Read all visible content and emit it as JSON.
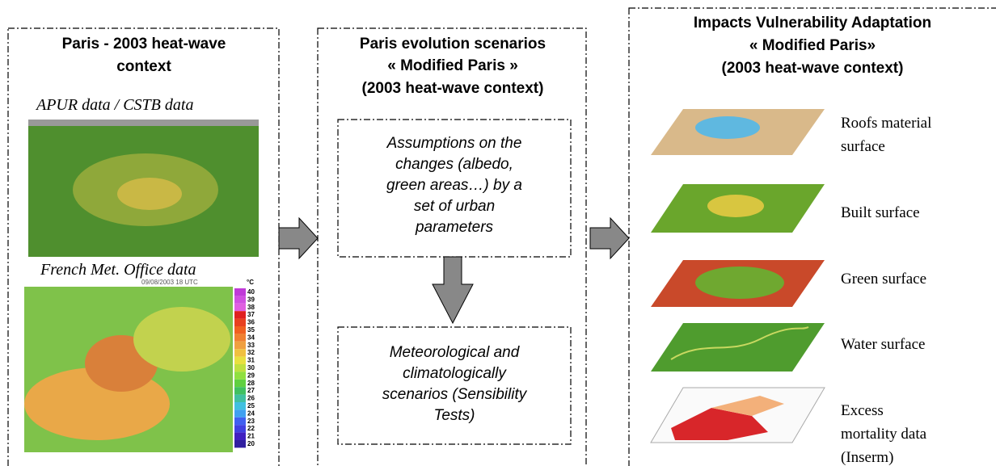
{
  "left": {
    "title": [
      "Paris - 2003 heat-wave",
      "context"
    ],
    "label1": "APUR data / CSTB data",
    "label2": "French Met. Office data",
    "map_date": "09/08/2003 18 UTC",
    "unit": "°C",
    "colorbar": [
      40,
      39,
      38,
      37,
      36,
      35,
      34,
      33,
      32,
      31,
      30,
      29,
      28,
      27,
      26,
      25,
      24,
      23,
      22,
      21,
      20
    ]
  },
  "middle": {
    "title": [
      "Paris evolution scenarios",
      "« Modified Paris »",
      "(2003 heat-wave context)"
    ],
    "box1": [
      "Assumptions on the",
      "changes (albedo,",
      "green areas…) by a",
      "set of urban",
      "parameters"
    ],
    "box2": [
      "Meteorological and",
      "climatologically",
      "scenarios (Sensibility",
      "Tests)"
    ]
  },
  "right": {
    "title": [
      "Impacts Vulnerability Adaptation",
      "« Modified Paris»",
      "(2003 heat-wave context)"
    ],
    "layers": [
      [
        "Roofs material",
        "surface"
      ],
      [
        "Built surface"
      ],
      [
        "Green surface"
      ],
      [
        "Water surface"
      ],
      [
        "Excess",
        "mortality data",
        "(Inserm)"
      ]
    ]
  }
}
